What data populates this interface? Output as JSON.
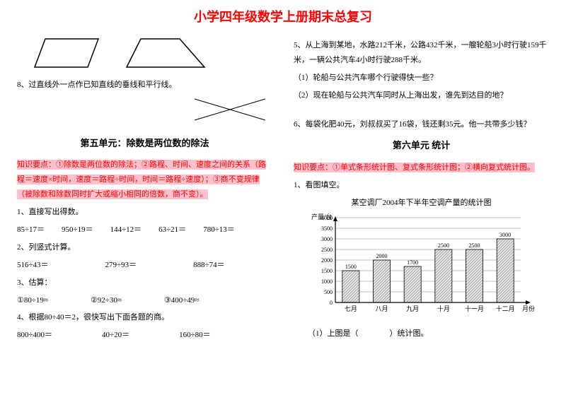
{
  "title": "小学四年级数学上册期末总复习",
  "left": {
    "p8": "8、过直线外一点作已知直线的垂线和平行线。",
    "section5": "第五单元：除数是两位数的除法",
    "kp5": "知识要点：①除数是两位数的除法；②路程、时间、速度之间的关系（路程＝速度×时间，速度＝路程÷时间，时间＝路程÷速度）；③商不变规律（被除数和除数同时扩大或缩小相同的倍数，商不变）。",
    "q1": "1、直接写出得数。",
    "q1items": [
      "85÷17＝",
      "950÷19＝",
      "144÷12＝",
      "63÷21＝",
      "780÷13＝"
    ],
    "q2": "2、列竖式计算。",
    "q2items": [
      "516÷43＝",
      "279÷93＝",
      "888÷74＝"
    ],
    "q3": "3、估算：",
    "q3items": [
      "①80÷19≈",
      "②92÷30≈",
      "③400÷49≈"
    ],
    "q4": "4、根据80÷40＝2，很快写出下面各题的商。",
    "q4items": [
      "800÷400＝",
      "40÷20＝",
      "160÷80＝"
    ]
  },
  "right": {
    "q5": "5、从上海到某地，水路212千米，公路432千米，一艘轮船3小时行驶159千米，一辆公共汽车4小时行驶288千米。",
    "q5a": "（1）轮船与公共汽车哪个行驶得快一些？",
    "q5b": "（2）现在轮船与公共汽车同时从上海出发，谁先到达目的地？",
    "q6": "6、每袋化肥40元，刘叔叔买了16袋，钱还剩35元。他一共带多少钱？",
    "section6": "第六单元 统计",
    "kp6": "知识要点：①单式条形统计图、复式条形统计图；②横向复式统计图。",
    "q7": "1、看图填空。",
    "q7a": "（1）上图是（　　　　）统计图。",
    "chart": {
      "title": "某空调厂2004年下半年空调产量的统计图",
      "ylabel": "产量/台",
      "xlabel": "月份",
      "categories": [
        "七月",
        "八月",
        "九月",
        "十月",
        "十一月",
        "十二月"
      ],
      "values": [
        1500,
        2000,
        1700,
        2500,
        2500,
        3000
      ],
      "yticks": [
        0,
        500,
        1000,
        1500,
        2000,
        2500,
        3000,
        3500,
        4000
      ],
      "fill_pattern": "#cccccc",
      "grid_color": "#808080",
      "axis_color": "#000000"
    }
  }
}
